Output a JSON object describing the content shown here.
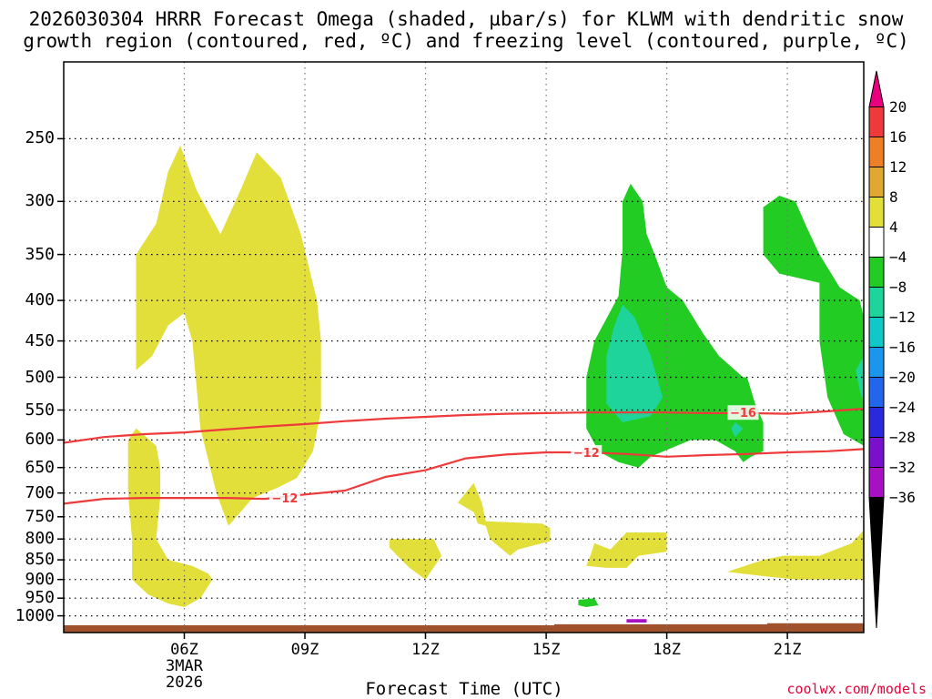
{
  "title_line1": "2026030304 HRRR Forecast Omega (shaded, µbar/s) for KLWM with dendritic snow",
  "title_line2": "growth region (contoured, red, ºC) and freezing level (contoured, purple, ºC)",
  "credit": "coolwx.com/models",
  "chart_data": {
    "type": "heatmap",
    "title": "2026030304 HRRR Forecast Omega (shaded, µbar/s) for KLWM with dendritic snow growth region (contoured, red, ºC) and freezing level (contoured, purple, ºC)",
    "xlabel": "Forecast Time (UTC)",
    "ylabel": "",
    "x_range_hours_utc": [
      3.0,
      22.9
    ],
    "y_axis": "pressure (mb), reversed, log scale",
    "ylim": [
      1050,
      200
    ],
    "y_ticks": [
      250,
      300,
      350,
      400,
      450,
      500,
      550,
      600,
      650,
      700,
      750,
      800,
      850,
      900,
      950,
      1000
    ],
    "x_ticks": [
      {
        "hour": 6,
        "label": "06Z",
        "sub1": "3MAR",
        "sub2": "2026"
      },
      {
        "hour": 9,
        "label": "09Z"
      },
      {
        "hour": 12,
        "label": "12Z"
      },
      {
        "hour": 15,
        "label": "15Z"
      },
      {
        "hour": 18,
        "label": "18Z"
      },
      {
        "hour": 21,
        "label": "21Z"
      }
    ],
    "grid": true,
    "colorbar": {
      "position": "right",
      "labels": [
        "20",
        "16",
        "12",
        "8",
        "4",
        "−4",
        "−8",
        "−12",
        "−16",
        "−20",
        "−24",
        "−28",
        "−32",
        "−36"
      ],
      "colors": [
        "#e8007f",
        "#ee3a3a",
        "#ee7f26",
        "#e0a830",
        "#e2de3a",
        "#ffffff",
        "#22cc22",
        "#1ed49a",
        "#10c8c8",
        "#1a96ee",
        "#2266ee",
        "#2a2adc",
        "#7a10cc",
        "#a810c4",
        "#a8a8a8",
        "#000000"
      ]
    },
    "omega_regions": [
      {
        "level": "4 to 8",
        "color": "#e2de3a",
        "points": [
          [
            4.8,
            490
          ],
          [
            4.8,
            420
          ],
          [
            4.8,
            350
          ],
          [
            5.3,
            320
          ],
          [
            5.6,
            275
          ],
          [
            5.9,
            255
          ],
          [
            6.3,
            290
          ],
          [
            6.9,
            330
          ],
          [
            7.4,
            290
          ],
          [
            7.8,
            260
          ],
          [
            8.4,
            280
          ],
          [
            8.9,
            330
          ],
          [
            9.3,
            400
          ],
          [
            9.4,
            450
          ],
          [
            9.4,
            550
          ],
          [
            9.2,
            620
          ],
          [
            8.8,
            670
          ],
          [
            8.3,
            690
          ],
          [
            7.7,
            710
          ],
          [
            7.1,
            770
          ],
          [
            6.8,
            700
          ],
          [
            6.4,
            580
          ],
          [
            6.2,
            450
          ],
          [
            6.0,
            415
          ],
          [
            5.6,
            430
          ],
          [
            5.2,
            470
          ]
        ]
      },
      {
        "level": "4 to 8",
        "color": "#e2de3a",
        "points": [
          [
            4.8,
            580
          ],
          [
            5.3,
            610
          ],
          [
            5.4,
            650
          ],
          [
            5.4,
            710
          ],
          [
            5.3,
            800
          ],
          [
            5.6,
            850
          ],
          [
            6.2,
            865
          ],
          [
            6.6,
            885
          ],
          [
            6.7,
            900
          ],
          [
            6.4,
            950
          ],
          [
            6.0,
            975
          ],
          [
            5.6,
            965
          ],
          [
            5.1,
            940
          ],
          [
            4.7,
            900
          ],
          [
            4.7,
            800
          ],
          [
            4.6,
            700
          ],
          [
            4.6,
            650
          ],
          [
            4.6,
            600
          ]
        ]
      },
      {
        "level": "4 to 8",
        "color": "#e2de3a",
        "points": [
          [
            11.1,
            800
          ],
          [
            12.2,
            800
          ],
          [
            12.4,
            840
          ],
          [
            12.0,
            900
          ],
          [
            11.6,
            870
          ],
          [
            11.3,
            840
          ],
          [
            11.1,
            820
          ]
        ]
      },
      {
        "level": "4 to 8",
        "color": "#e2de3a",
        "points": [
          [
            13.2,
            680
          ],
          [
            13.4,
            720
          ],
          [
            13.5,
            760
          ],
          [
            14.9,
            765
          ],
          [
            15.1,
            775
          ],
          [
            15.1,
            805
          ],
          [
            14.3,
            825
          ],
          [
            14.1,
            840
          ],
          [
            13.6,
            800
          ],
          [
            13.5,
            770
          ],
          [
            13.3,
            765
          ],
          [
            13.2,
            740
          ],
          [
            12.8,
            720
          ]
        ]
      },
      {
        "level": "4 to 8",
        "color": "#e2de3a",
        "points": [
          [
            16.6,
            825
          ],
          [
            17.0,
            785
          ],
          [
            18.0,
            785
          ],
          [
            18.0,
            830
          ],
          [
            17.3,
            840
          ],
          [
            17.0,
            870
          ],
          [
            16.5,
            870
          ],
          [
            16.0,
            865
          ],
          [
            16.1,
            840
          ],
          [
            16.2,
            810
          ]
        ]
      },
      {
        "level": "4 to 8",
        "color": "#e2de3a",
        "points": [
          [
            20.4,
            850
          ],
          [
            20.9,
            840
          ],
          [
            21.8,
            840
          ],
          [
            22.6,
            810
          ],
          [
            22.9,
            780
          ],
          [
            22.9,
            900
          ],
          [
            22.0,
            900
          ],
          [
            21.2,
            900
          ],
          [
            20.3,
            890
          ],
          [
            19.5,
            880
          ]
        ]
      },
      {
        "level": "-4 to -8",
        "color": "#22cc22",
        "points": [
          [
            16.8,
            395
          ],
          [
            16.9,
            345
          ],
          [
            16.9,
            300
          ],
          [
            17.1,
            285
          ],
          [
            17.4,
            300
          ],
          [
            17.5,
            330
          ],
          [
            17.7,
            350
          ],
          [
            18.0,
            385
          ],
          [
            18.4,
            400
          ],
          [
            18.9,
            440
          ],
          [
            19.3,
            470
          ],
          [
            19.9,
            500
          ],
          [
            20.0,
            500
          ],
          [
            20.2,
            540
          ],
          [
            20.4,
            570
          ],
          [
            20.4,
            620
          ],
          [
            20.1,
            630
          ],
          [
            19.9,
            640
          ],
          [
            19.7,
            620
          ],
          [
            19.2,
            600
          ],
          [
            18.6,
            600
          ],
          [
            17.6,
            630
          ],
          [
            17.3,
            650
          ],
          [
            16.8,
            640
          ],
          [
            16.3,
            620
          ],
          [
            16.0,
            580
          ],
          [
            16.0,
            500
          ],
          [
            16.2,
            450
          ]
        ]
      },
      {
        "level": "-4 to -8",
        "color": "#22cc22",
        "points": [
          [
            20.4,
            305
          ],
          [
            20.8,
            295
          ],
          [
            21.2,
            300
          ],
          [
            21.5,
            325
          ],
          [
            21.8,
            350
          ],
          [
            22.3,
            385
          ],
          [
            22.8,
            400
          ],
          [
            22.9,
            420
          ],
          [
            22.9,
            610
          ],
          [
            22.4,
            590
          ],
          [
            22.0,
            530
          ],
          [
            21.8,
            450
          ],
          [
            21.8,
            380
          ],
          [
            20.8,
            370
          ],
          [
            20.4,
            350
          ]
        ]
      },
      {
        "level": "-4 to -8",
        "color": "#22cc22",
        "points": [
          [
            15.8,
            955
          ],
          [
            16.2,
            950
          ],
          [
            16.3,
            970
          ],
          [
            16.0,
            975
          ],
          [
            15.8,
            970
          ]
        ]
      },
      {
        "level": "-8 to -12",
        "color": "#1ed49a",
        "points": [
          [
            16.5,
            470
          ],
          [
            16.7,
            430
          ],
          [
            16.9,
            405
          ],
          [
            17.2,
            420
          ],
          [
            17.6,
            470
          ],
          [
            17.9,
            530
          ],
          [
            17.6,
            560
          ],
          [
            16.9,
            570
          ],
          [
            16.5,
            540
          ]
        ]
      },
      {
        "level": "-8 to -12",
        "color": "#1ed49a",
        "points": [
          [
            19.7,
            570
          ],
          [
            19.9,
            580
          ],
          [
            19.7,
            595
          ],
          [
            19.6,
            580
          ]
        ]
      },
      {
        "level": "-8 to -12",
        "color": "#1ed49a",
        "points": [
          [
            22.7,
            490
          ],
          [
            22.9,
            470
          ],
          [
            22.9,
            540
          ],
          [
            22.8,
            520
          ]
        ]
      },
      {
        "level": "-28 to -32",
        "color": "#a810c4",
        "points": [
          [
            17.0,
            1010
          ],
          [
            17.5,
            1010
          ],
          [
            17.5,
            1020
          ],
          [
            17.0,
            1020
          ]
        ]
      }
    ],
    "contours": [
      {
        "label": "",
        "color": "#ee3a3a",
        "points": [
          [
            3.0,
            605
          ],
          [
            4.0,
            595
          ],
          [
            5.0,
            590
          ],
          [
            6.0,
            587
          ],
          [
            7.0,
            582
          ],
          [
            8.0,
            577
          ],
          [
            9.0,
            573
          ],
          [
            10.0,
            568
          ],
          [
            11.0,
            564
          ],
          [
            12.0,
            561
          ],
          [
            13.0,
            558
          ],
          [
            14.0,
            556
          ],
          [
            15.0,
            555
          ],
          [
            16.0,
            554
          ],
          [
            17.0,
            554
          ],
          [
            18.0,
            554
          ],
          [
            19.0,
            555
          ],
          [
            20.0,
            555
          ],
          [
            21.0,
            556
          ],
          [
            22.0,
            552
          ],
          [
            22.9,
            548
          ]
        ]
      },
      {
        "label": "−12",
        "color": "#ee3a3a",
        "points": [
          [
            3.0,
            722
          ],
          [
            4.0,
            712
          ],
          [
            5.0,
            710
          ],
          [
            6.0,
            710
          ],
          [
            7.0,
            710
          ],
          [
            8.0,
            712
          ],
          [
            9.0,
            703
          ],
          [
            10.0,
            695
          ],
          [
            11.0,
            668
          ],
          [
            12.0,
            655
          ],
          [
            13.0,
            633
          ],
          [
            14.0,
            626
          ],
          [
            15.0,
            622
          ],
          [
            16.0,
            622
          ],
          [
            17.0,
            625
          ],
          [
            18.0,
            630
          ],
          [
            19.0,
            627
          ],
          [
            20.0,
            625
          ],
          [
            21.0,
            622
          ],
          [
            22.0,
            620
          ],
          [
            22.9,
            616
          ]
        ]
      }
    ],
    "contour_labels": [
      {
        "text": "−12",
        "x": 8.5,
        "y": 710
      },
      {
        "text": "−12",
        "x": 16.0,
        "y": 622
      },
      {
        "text": "−16",
        "x": 19.9,
        "y": 554
      }
    ],
    "ground_segments": [
      [
        3.0,
        23.0,
        1028
      ],
      [
        15.2,
        23.0,
        1025
      ],
      [
        20.5,
        23.0,
        1022
      ]
    ]
  }
}
